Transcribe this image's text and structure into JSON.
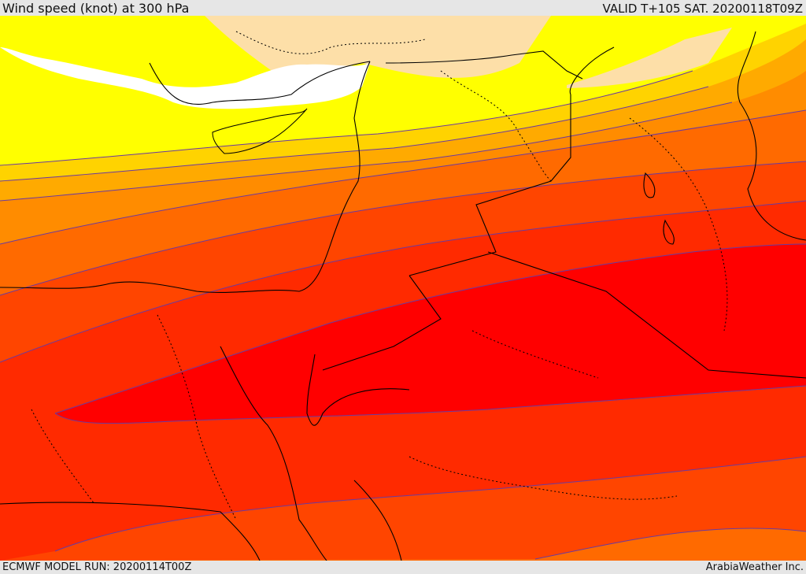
{
  "header": {
    "title": "Wind speed (knot) at 300 hPa",
    "valid_time": "VALID T+105 SAT. 20200118T09Z"
  },
  "footer": {
    "model_run": "ECMWF MODEL RUN: 20200114T00Z",
    "credit": "ArabiaWeather Inc."
  },
  "map": {
    "region": "Eastern Mediterranean, Levant, Egypt and northern Arabia",
    "variable": "wind speed",
    "units": "knot",
    "pressure_level_hpa": 300,
    "colors": {
      "sea": "#ffffff",
      "band_lightest": "#fddfa8",
      "band_yellow": "#ffff00",
      "band_gold": "#ffd300",
      "band_amber": "#ffaa00",
      "band_orange_light": "#ff8c00",
      "band_orange": "#ff6a00",
      "band_red_orange": "#ff4500",
      "band_red_light": "#ff2a00",
      "band_red": "#ff0000",
      "coastline": "#000000",
      "contour": "#6a3aa0"
    },
    "jet_core_note": "strongest winds (red) over Sinai, Jordan and northern Saudi Arabia"
  }
}
